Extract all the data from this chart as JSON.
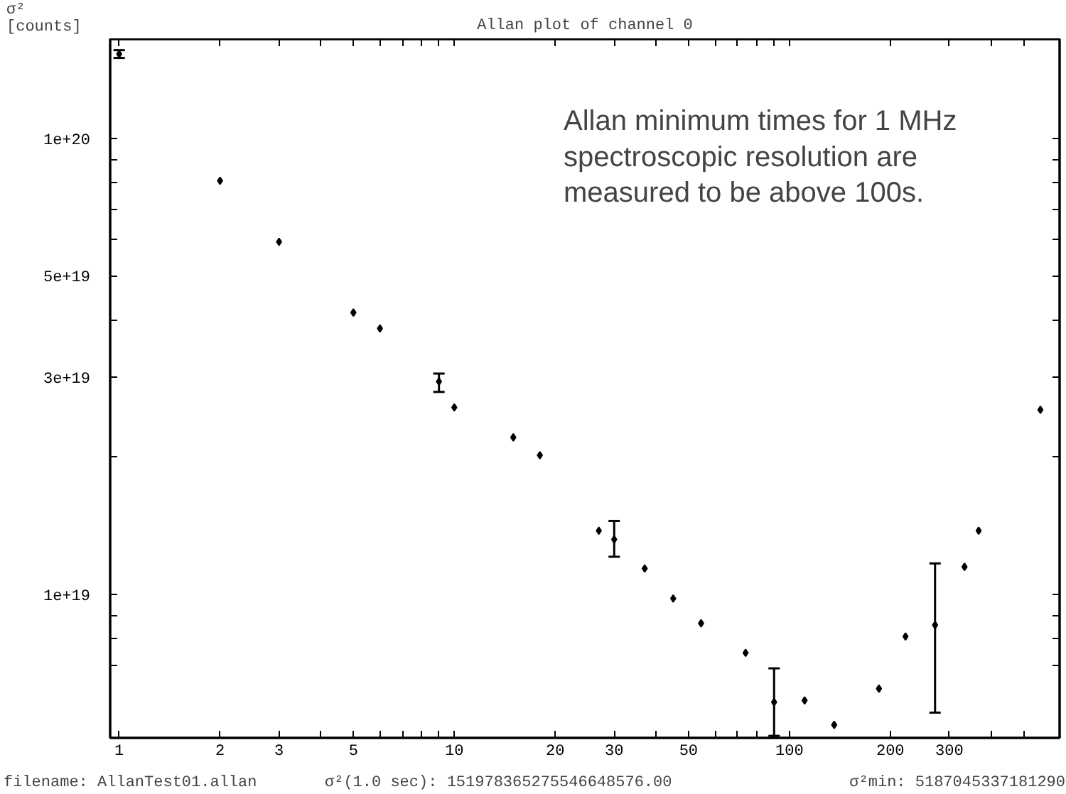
{
  "chart_data": {
    "type": "scatter",
    "title": "Allan plot of channel 0",
    "ylabel": "σ²\n[counts]",
    "x": [
      1,
      2,
      3,
      5,
      6,
      9,
      10,
      15,
      18,
      27,
      30,
      37,
      45,
      54.5,
      74,
      90,
      111,
      136,
      185,
      222,
      272,
      333,
      367,
      561
    ],
    "values": [
      1.53e+20,
      8.07e+19,
      5.93e+19,
      4.15e+19,
      3.83e+19,
      2.93e+19,
      2.57e+19,
      2.21e+19,
      2.02e+19,
      1.38e+19,
      1.32e+19,
      1.14e+19,
      9.8e+18,
      8.65e+18,
      7.45e+18,
      5.81e+18,
      5.86e+18,
      5.18e+18,
      6.22e+18,
      8.09e+18,
      8.57e+18,
      1.15e+19,
      1.38e+19,
      2.54e+19
    ],
    "errors": [
      [
        1.5e+20,
        1.56e+20
      ],
      null,
      null,
      null,
      null,
      [
        2.78e+19,
        3.05e+19
      ],
      null,
      null,
      null,
      null,
      [
        1.21e+19,
        1.45e+19
      ],
      null,
      null,
      null,
      null,
      [
        4.9e+18,
        6.89e+18
      ],
      null,
      null,
      null,
      null,
      [
        5.51e+18,
        1.17e+19
      ],
      null,
      null,
      null
    ],
    "color": "#000000",
    "marker": "diamond",
    "log": "xy",
    "xlim": [
      0.94,
      640
    ],
    "ylim": [
      4.85e+18,
      1.65e+20
    ],
    "xticks": [
      1,
      2,
      3,
      {
        "value": 4,
        "label": null
      },
      5,
      {
        "value": 6,
        "label": null
      },
      {
        "value": 7,
        "label": null
      },
      {
        "value": 8,
        "label": null
      },
      {
        "value": 9,
        "label": null
      },
      10,
      20,
      30,
      {
        "value": 40,
        "label": null
      },
      50,
      {
        "value": 60,
        "label": null
      },
      {
        "value": 70,
        "label": null
      },
      {
        "value": 80,
        "label": null
      },
      {
        "value": 90,
        "label": null
      },
      100,
      200,
      300,
      {
        "value": 400,
        "label": null
      },
      {
        "value": 500,
        "label": null
      }
    ],
    "yticks": [
      {
        "value": 7e+18,
        "label": null
      },
      {
        "value": 8e+18,
        "label": null
      },
      {
        "value": 9e+18,
        "label": null
      },
      {
        "value": 1e+19,
        "label": "1e+19"
      },
      {
        "value": 2e+19,
        "label": null
      },
      {
        "value": 3e+19,
        "label": "3e+19"
      },
      {
        "value": 4e+19,
        "label": null
      },
      {
        "value": 5e+19,
        "label": "5e+19"
      },
      {
        "value": 6e+19,
        "label": null
      },
      {
        "value": 7e+19,
        "label": null
      },
      {
        "value": 8e+19,
        "label": null
      },
      {
        "value": 9e+19,
        "label": null
      },
      {
        "value": 1e+20,
        "label": "1e+20"
      }
    ],
    "annotations": [
      "Allan minimum times for 1 MHz\nspectroscopic resolution are\nmeasured to be above 100s.",
      "filename: AllanTest01.allan",
      "σ²(1.0 sec): 151978365275546648576.00",
      "σ²min: 5187045337181290"
    ]
  }
}
